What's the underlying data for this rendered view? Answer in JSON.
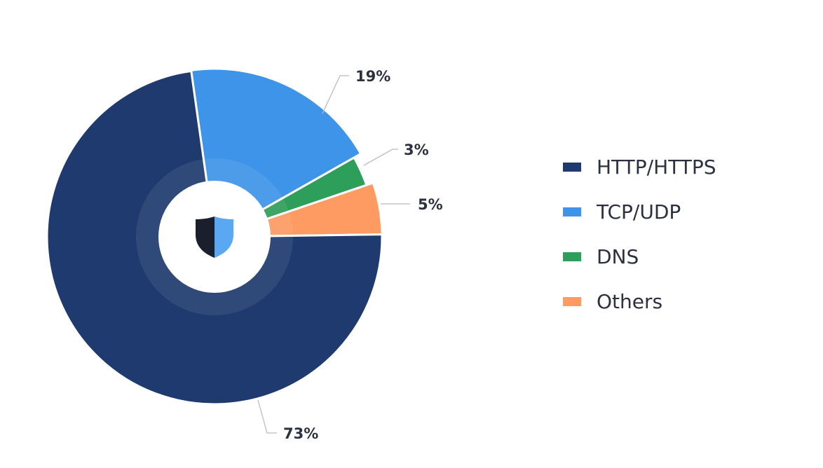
{
  "chart_data": {
    "type": "pie",
    "style": "donut",
    "title": "",
    "categories": [
      "HTTP/HTTPS",
      "TCP/UDP",
      "DNS",
      "Others"
    ],
    "values": [
      73,
      19,
      3,
      5
    ],
    "labels": [
      "73%",
      "19%",
      "3%",
      "5%"
    ],
    "colors": [
      "#1e3a6e",
      "#3d94e9",
      "#2e9e5b",
      "#fd9b62"
    ],
    "legend_position": "right",
    "center_icon": "shield-icon"
  }
}
